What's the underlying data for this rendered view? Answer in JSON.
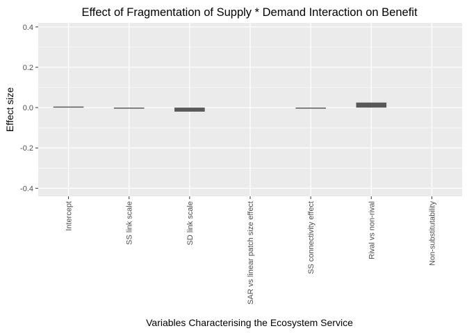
{
  "chart_data": {
    "type": "bar",
    "title": "Effect of Fragmentation of Supply * Demand Interaction on Benefit",
    "xlabel": "Variables Characterising the Ecosystem Service",
    "ylabel": "Effect size",
    "categories": [
      "Intercept",
      "SS link scale",
      "SD link scale",
      "SAR vs linear patch size effect",
      "SS connectivity effect",
      "Rival vs non-rival",
      "Non-substitutability"
    ],
    "values": [
      0.005,
      -0.003,
      -0.02,
      0,
      -0.004,
      0.025,
      0
    ],
    "ylim": [
      -0.44,
      0.42
    ],
    "yticks": [
      "-0.4",
      "-0.2",
      "0.0",
      "0.2",
      "0.4"
    ],
    "grid": true,
    "legend": "none",
    "colors": {
      "panel": "#ebebeb",
      "grid": "#ffffff",
      "bar": "#595959"
    }
  }
}
